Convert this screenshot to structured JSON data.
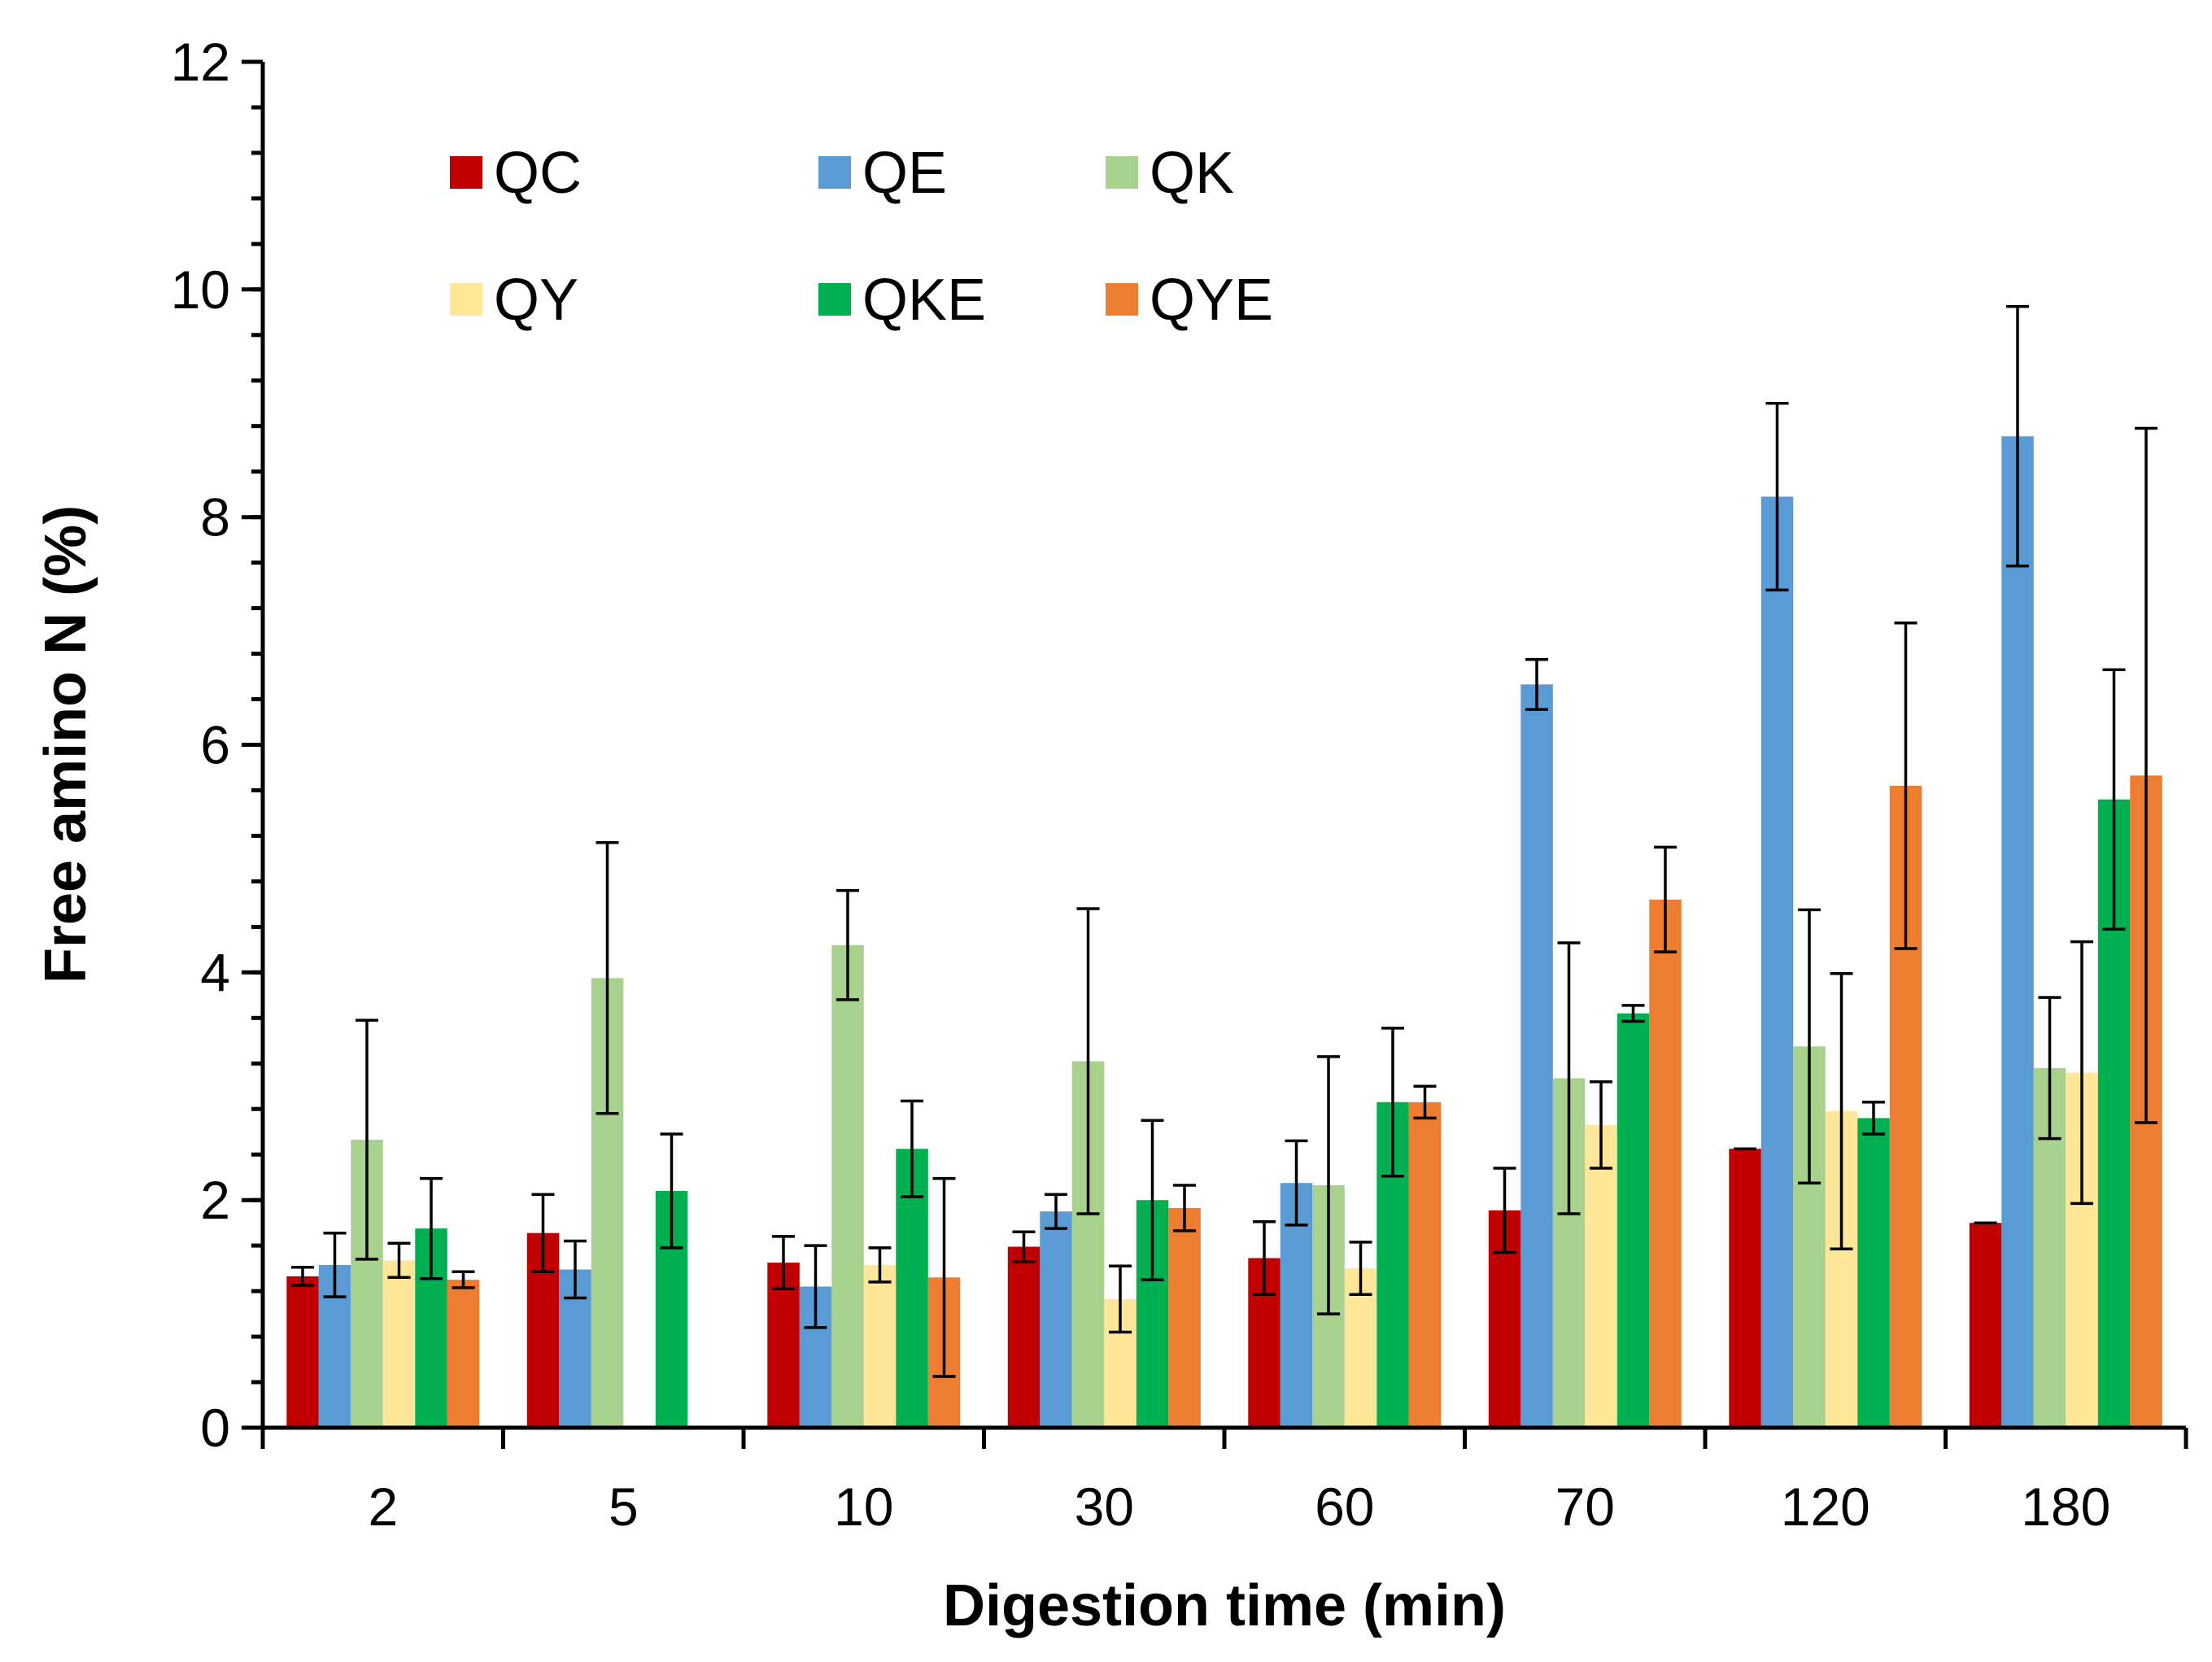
{
  "chart_data": {
    "type": "bar",
    "title": "",
    "xlabel": "Digestion time (min)",
    "ylabel": "Free amino N (%)",
    "ylim": [
      0,
      12
    ],
    "yticks": [
      0,
      2,
      4,
      6,
      8,
      10,
      12
    ],
    "y_minor_step": 0.4,
    "grid": false,
    "legend_position": "top-left",
    "categories": [
      "2",
      "5",
      "10",
      "30",
      "60",
      "70",
      "120",
      "180"
    ],
    "series": [
      {
        "name": "QC",
        "color": "#C00000",
        "values": [
          1.33,
          1.71,
          1.45,
          1.59,
          1.49,
          1.91,
          2.45,
          1.8
        ],
        "errors": [
          0.08,
          0.34,
          0.23,
          0.13,
          0.32,
          0.37,
          0.0,
          0.0
        ]
      },
      {
        "name": "QE",
        "color": "#5B9BD5",
        "values": [
          1.43,
          1.39,
          1.24,
          1.9,
          2.15,
          6.53,
          8.18,
          8.71
        ],
        "errors": [
          0.28,
          0.25,
          0.36,
          0.15,
          0.37,
          0.22,
          0.82,
          1.14
        ]
      },
      {
        "name": "QK",
        "color": "#A9D18E",
        "values": [
          2.53,
          3.95,
          4.24,
          3.22,
          2.13,
          3.07,
          3.35,
          3.16
        ],
        "errors": [
          1.05,
          1.19,
          0.48,
          1.34,
          1.13,
          1.19,
          1.2,
          0.62
        ]
      },
      {
        "name": "QY",
        "color": "#FFE699",
        "values": [
          1.47,
          null,
          1.43,
          1.13,
          1.4,
          2.66,
          2.78,
          3.12
        ],
        "errors": [
          0.15,
          null,
          0.15,
          0.29,
          0.23,
          0.38,
          1.21,
          1.15
        ]
      },
      {
        "name": "QKE",
        "color": "#00B050",
        "values": [
          1.75,
          2.08,
          2.45,
          2.0,
          2.86,
          3.64,
          2.72,
          5.52
        ],
        "errors": [
          0.44,
          0.5,
          0.42,
          0.7,
          0.65,
          0.07,
          0.14,
          1.14
        ]
      },
      {
        "name": "QYE",
        "color": "#ED7D31",
        "values": [
          1.3,
          null,
          1.32,
          1.93,
          2.86,
          4.64,
          5.64,
          5.73
        ],
        "errors": [
          0.07,
          null,
          0.87,
          0.2,
          0.14,
          0.46,
          1.43,
          3.05
        ]
      }
    ]
  }
}
